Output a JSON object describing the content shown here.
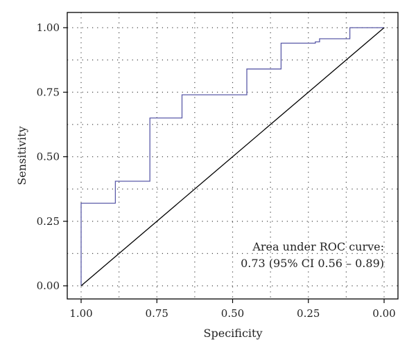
{
  "chart_data": {
    "type": "line",
    "xlabel": "Specificity",
    "ylabel": "Sensitivity",
    "x_reversed": true,
    "xlim": [
      0,
      1
    ],
    "ylim": [
      0,
      1
    ],
    "grid": true,
    "x_ticks": [
      "1.00",
      "0.75",
      "0.50",
      "0.25",
      "0.00"
    ],
    "x_tick_values": [
      1,
      0.75,
      0.5,
      0.25,
      0
    ],
    "y_ticks": [
      "0.00",
      "0.25",
      "0.50",
      "0.75",
      "1.00"
    ],
    "y_tick_values": [
      0,
      0.25,
      0.5,
      0.75,
      1
    ],
    "series": [
      {
        "color": "#5a5aa8",
        "points": [
          [
            1.0,
            0.0
          ],
          [
            1.0,
            0.32
          ],
          [
            0.887,
            0.32
          ],
          [
            0.887,
            0.405
          ],
          [
            0.773,
            0.405
          ],
          [
            0.773,
            0.65
          ],
          [
            0.667,
            0.65
          ],
          [
            0.667,
            0.74
          ],
          [
            0.453,
            0.74
          ],
          [
            0.453,
            0.84
          ],
          [
            0.34,
            0.84
          ],
          [
            0.34,
            0.94
          ],
          [
            0.227,
            0.94
          ],
          [
            0.227,
            0.945
          ],
          [
            0.213,
            0.945
          ],
          [
            0.213,
            0.957
          ],
          [
            0.113,
            0.957
          ],
          [
            0.113,
            1.0
          ],
          [
            0.0,
            1.0
          ]
        ]
      },
      {
        "color": "#000000",
        "points": [
          [
            1.0,
            0.0
          ],
          [
            0.0,
            1.0
          ]
        ]
      }
    ],
    "annotation": [
      "Area under ROC curve:",
      "0.73 (95% CI 0.56 – 0.89)"
    ]
  }
}
